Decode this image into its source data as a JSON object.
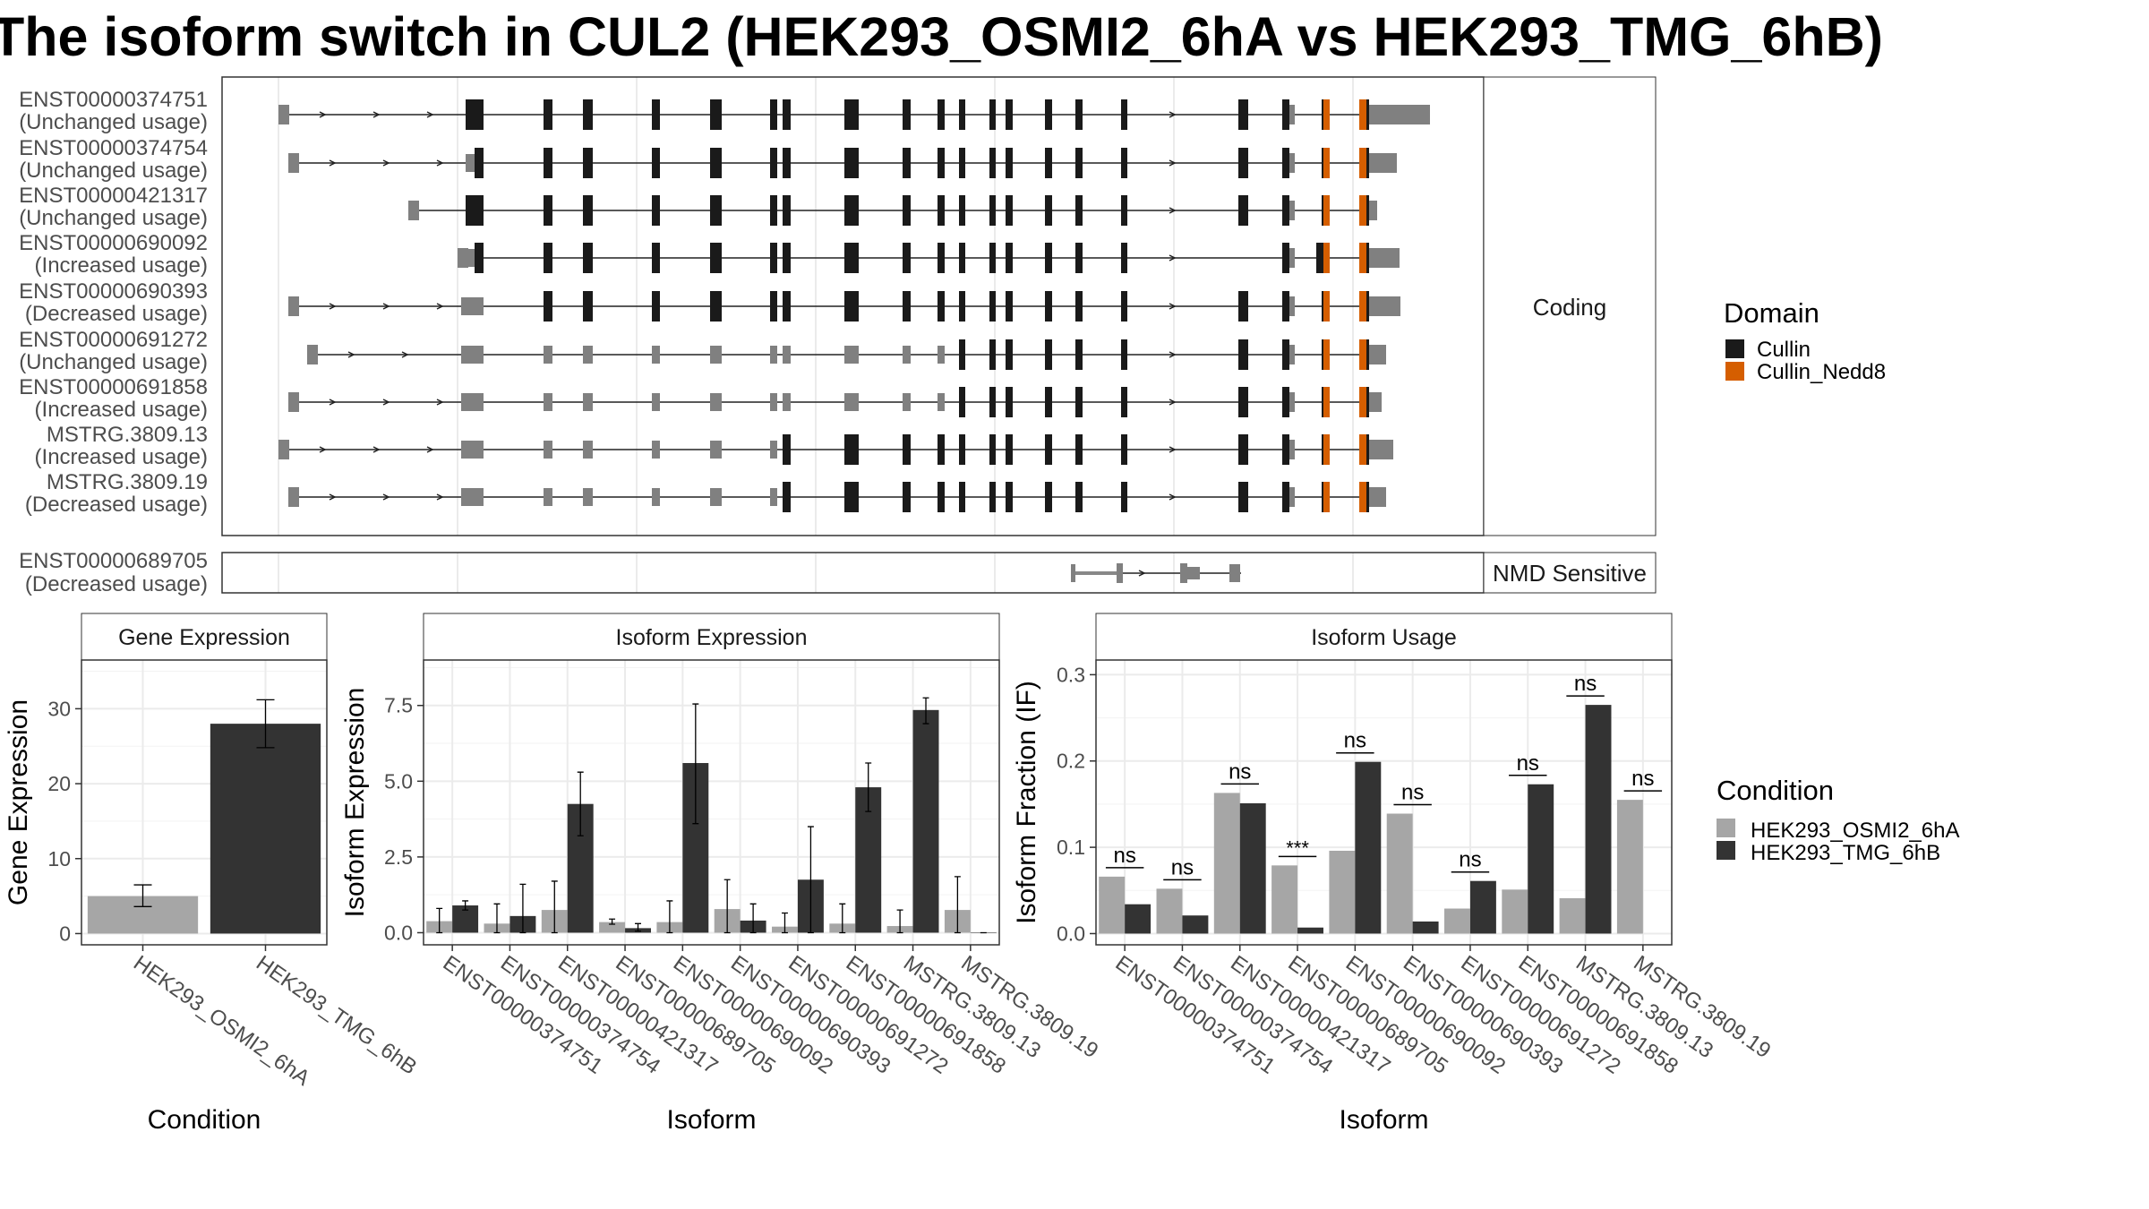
{
  "title": "The isoform switch in CUL2 (HEK293_OSMI2_6hA vs HEK293_TMG_6hB)",
  "colors": {
    "cullin": "#1a1a1a",
    "cullin_nedd8": "#d55e00",
    "exon_noncoding": "#808080",
    "condition_a": "#a6a6a6",
    "condition_b": "#333333"
  },
  "transcript_panels": {
    "coding_label": "Coding",
    "nmd_label": "NMD Sensitive",
    "coding": [
      {
        "id": "ENST00000374751",
        "usage": "(Unchanged usage)"
      },
      {
        "id": "ENST00000374754",
        "usage": "(Unchanged usage)"
      },
      {
        "id": "ENST00000421317",
        "usage": "(Unchanged usage)"
      },
      {
        "id": "ENST00000690092",
        "usage": "(Increased usage)"
      },
      {
        "id": "ENST00000690393",
        "usage": "(Decreased usage)"
      },
      {
        "id": "ENST00000691272",
        "usage": "(Unchanged usage)"
      },
      {
        "id": "ENST00000691858",
        "usage": "(Increased usage)"
      },
      {
        "id": "MSTRG.3809.13",
        "usage": "(Increased usage)"
      },
      {
        "id": "MSTRG.3809.19",
        "usage": "(Decreased usage)"
      }
    ],
    "nmd": [
      {
        "id": "ENST00000689705",
        "usage": "(Decreased usage)"
      }
    ]
  },
  "legends": {
    "domain": {
      "title": "Domain",
      "items": [
        "Cullin",
        "Cullin_Nedd8"
      ]
    },
    "condition": {
      "title": "Condition",
      "items": [
        "HEK293_OSMI2_6hA",
        "HEK293_TMG_6hB"
      ]
    }
  },
  "chart_data": [
    {
      "type": "bar",
      "title": "Gene Expression",
      "xlabel": "Condition",
      "ylabel": "Gene Expression",
      "ylim": [
        -1.5,
        36.5
      ],
      "yticks": [
        0,
        10,
        20,
        30
      ],
      "categories": [
        "HEK293_OSMI2_6hA",
        "HEK293_TMG_6hB"
      ],
      "values": [
        5.0,
        28.0
      ],
      "error": [
        [
          3.6,
          6.5
        ],
        [
          24.8,
          31.2
        ]
      ]
    },
    {
      "type": "bar",
      "title": "Isoform Expression",
      "xlabel": "Isoform",
      "ylabel": "Isoform Expression",
      "ylim": [
        -0.4,
        9.0
      ],
      "yticks": [
        0.0,
        2.5,
        5.0,
        7.5
      ],
      "yticklabels": [
        "0.0",
        "2.5",
        "5.0",
        "7.5"
      ],
      "categories": [
        "ENST00000374751",
        "ENST00000374754",
        "ENST00000421317",
        "ENST00000689705",
        "ENST00000690092",
        "ENST00000690393",
        "ENST00000691272",
        "ENST00000691858",
        "MSTRG.3809.13",
        "MSTRG.3809.19"
      ],
      "series": [
        {
          "name": "HEK293_OSMI2_6hA",
          "values": [
            0.38,
            0.3,
            0.75,
            0.35,
            0.35,
            0.78,
            0.2,
            0.3,
            0.22,
            0.75
          ],
          "error": [
            [
              0.0,
              0.8
            ],
            [
              0.0,
              0.95
            ],
            [
              0.0,
              1.7
            ],
            [
              0.28,
              0.45
            ],
            [
              0.0,
              1.05
            ],
            [
              0.0,
              1.75
            ],
            [
              0.0,
              0.65
            ],
            [
              0.0,
              0.95
            ],
            [
              0.0,
              0.75
            ],
            [
              0.0,
              1.85
            ]
          ]
        },
        {
          "name": "HEK293_TMG_6hB",
          "values": [
            0.9,
            0.55,
            4.25,
            0.15,
            5.6,
            0.4,
            1.75,
            4.8,
            7.35,
            0.0
          ],
          "error": [
            [
              0.75,
              1.05
            ],
            [
              0.0,
              1.6
            ],
            [
              3.2,
              5.3
            ],
            [
              0.05,
              0.3
            ],
            [
              3.6,
              7.55
            ],
            [
              0.0,
              0.95
            ],
            [
              0.0,
              3.5
            ],
            [
              4.0,
              5.6
            ],
            [
              6.9,
              7.75
            ],
            [
              0.0,
              0.0
            ]
          ]
        }
      ]
    },
    {
      "type": "bar",
      "title": "Isoform Usage",
      "xlabel": "Isoform",
      "ylabel": "Isoform Fraction (IF)",
      "ylim": [
        -0.013,
        0.317
      ],
      "yticks": [
        0.0,
        0.1,
        0.2,
        0.3
      ],
      "yticklabels": [
        "0.0",
        "0.1",
        "0.2",
        "0.3"
      ],
      "categories": [
        "ENST00000374751",
        "ENST00000374754",
        "ENST00000421317",
        "ENST00000689705",
        "ENST00000690092",
        "ENST00000690393",
        "ENST00000691272",
        "ENST00000691858",
        "MSTRG.3809.13",
        "MSTRG.3809.19"
      ],
      "series": [
        {
          "name": "HEK293_OSMI2_6hA",
          "values": [
            0.066,
            0.052,
            0.163,
            0.079,
            0.096,
            0.139,
            0.029,
            0.051,
            0.041,
            0.155
          ]
        },
        {
          "name": "HEK293_TMG_6hB",
          "values": [
            0.034,
            0.021,
            0.151,
            0.007,
            0.199,
            0.014,
            0.061,
            0.173,
            0.265,
            null
          ]
        }
      ],
      "significance": [
        "ns",
        "ns",
        "ns",
        "***",
        "ns",
        "ns",
        "ns",
        "ns",
        "ns",
        "ns"
      ]
    }
  ]
}
